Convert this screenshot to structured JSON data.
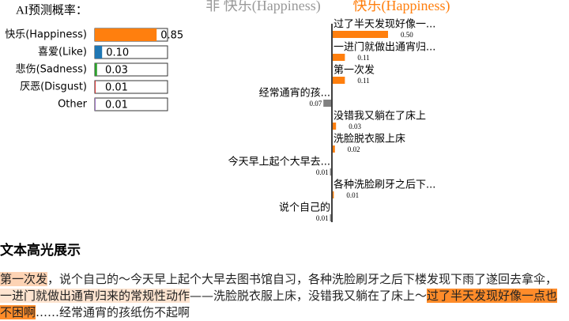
{
  "probabilities": {
    "title": "AI预测概率：",
    "items": [
      {
        "label": "快乐(Happiness)",
        "value": 0.85,
        "color": "#ff7f0e"
      },
      {
        "label": "喜爱(Like)",
        "value": 0.1,
        "value_label": "0.10",
        "color": "#1f77b4"
      },
      {
        "label": "悲伤(Sadness)",
        "value": 0.03,
        "color": "#2ca02c"
      },
      {
        "label": "厌恶(Disgust)",
        "value": 0.01,
        "color": "#d62728"
      },
      {
        "label": "Other",
        "value": 0.01,
        "color": "#9467bd"
      }
    ]
  },
  "features": {
    "negative_label": "非 快乐(Happiness)",
    "positive_label": "快乐(Happiness)",
    "positive_color": "#ff7f0e",
    "negative_color": "#808080",
    "items": [
      {
        "text": "过了半天发现好像一...",
        "weight": 0.5,
        "weight_label": "0.50",
        "side": "right"
      },
      {
        "text": "一进门就做出通宵归...",
        "weight": 0.11,
        "side": "right"
      },
      {
        "text": "第一次发",
        "weight": 0.11,
        "side": "right"
      },
      {
        "text": "经常通宵的孩...",
        "weight": 0.07,
        "side": "left"
      },
      {
        "text": "没错我又躺在了床上",
        "weight": 0.03,
        "side": "right"
      },
      {
        "text": "洗脸脱衣服上床",
        "weight": 0.02,
        "side": "right"
      },
      {
        "text": "今天早上起个大早去...",
        "weight": 0.01,
        "side": "left"
      },
      {
        "text": "各种洗脸刷牙之后下...",
        "weight": 0.01,
        "side": "right"
      },
      {
        "text": "说个自己的",
        "weight": 0.01,
        "side": "left"
      }
    ]
  },
  "highlight": {
    "title": "文本高光展示",
    "segments": [
      {
        "text": "第一次发",
        "color": "#fdd3b4"
      },
      {
        "text": "，说个自己的～今天早上起个大早去图书馆自习，各种洗脸刷牙之后下楼发现下雨了遂回去拿伞，"
      },
      {
        "text": "一进门就做出通宵归来的常规性动作",
        "color": "#fee4d0"
      },
      {
        "text": "——洗脸脱衣服上床，没错我又躺在了床上～"
      },
      {
        "text": "过了半天发现好像一点也不困啊",
        "color": "#ff8c2a"
      },
      {
        "text": "……经常通宵的孩纸伤不起啊"
      }
    ]
  }
}
